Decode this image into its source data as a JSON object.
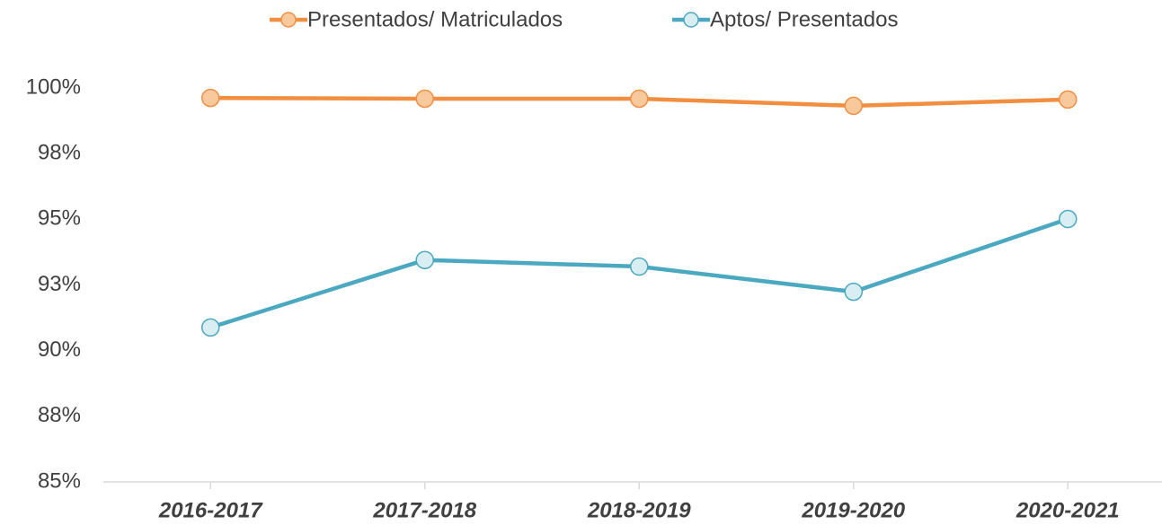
{
  "chart_data": {
    "type": "line",
    "categories": [
      "2016-2017",
      "2017-2018",
      "2018-2019",
      "2019-2020",
      "2020-2021"
    ],
    "series": [
      {
        "name": "Presentados/ Matriculados",
        "color": "#f28e3f",
        "marker_fill": "#f9c99e",
        "values": [
          99.62,
          99.59,
          99.59,
          99.32,
          99.56
        ]
      },
      {
        "name": "Aptos/ Presentados",
        "color": "#4aa8c0",
        "marker_fill": "#d9eef3",
        "values": [
          90.88,
          93.45,
          93.2,
          92.24,
          95.01
        ]
      }
    ],
    "ylim": [
      85,
      100
    ],
    "yticks": [
      {
        "value": 85,
        "label": "85%"
      },
      {
        "value": 87.5,
        "label": "88%"
      },
      {
        "value": 90,
        "label": "90%"
      },
      {
        "value": 92.5,
        "label": "93%"
      },
      {
        "value": 95,
        "label": "95%"
      },
      {
        "value": 97.5,
        "label": "98%"
      },
      {
        "value": 100,
        "label": "100%"
      }
    ],
    "grid": false,
    "legend": "top"
  }
}
